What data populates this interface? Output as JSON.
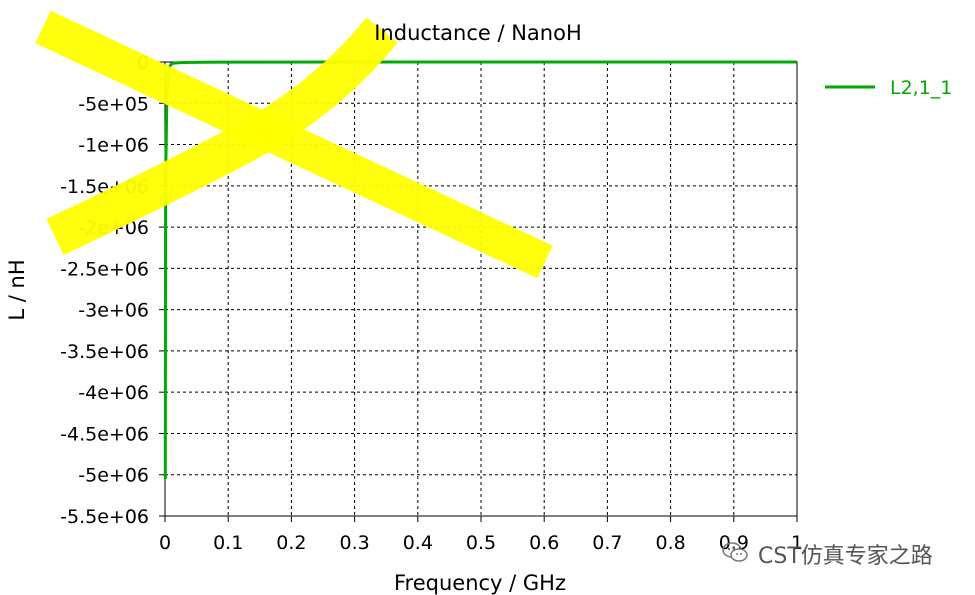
{
  "chart_data": {
    "type": "line",
    "title": "Inductance / NanoH",
    "xlabel": "Frequency / GHz",
    "ylabel": "L / nH",
    "xlim": [
      0,
      1
    ],
    "ylim": [
      -5500000,
      0
    ],
    "x_ticks": [
      0,
      0.1,
      0.2,
      0.3,
      0.4,
      0.5,
      0.6,
      0.7,
      0.8,
      0.9,
      1
    ],
    "x_tick_labels": [
      "0",
      "0.1",
      "0.2",
      "0.3",
      "0.4",
      "0.5",
      "0.6",
      "0.7",
      "0.8",
      "0.9",
      "1"
    ],
    "y_ticks": [
      0,
      -500000,
      -1000000,
      -1500000,
      -2000000,
      -2500000,
      -3000000,
      -3500000,
      -4000000,
      -4500000,
      -5000000,
      -5500000
    ],
    "y_tick_labels": [
      "0",
      "-5e+05",
      "-1e+06",
      "-1.5e+06",
      "-2e+06",
      "-2.5e+06",
      "-3e+06",
      "-3.5e+06",
      "-4e+06",
      "-4.5e+06",
      "-5e+06",
      "-5.5e+06"
    ],
    "grid": true,
    "legend_position": "right",
    "series": [
      {
        "name": "L2,1_1",
        "color": "#00aa00",
        "x": [
          0.0005,
          0.001,
          0.002,
          0.003,
          0.005,
          0.007,
          0.01,
          0.015,
          0.03,
          0.06,
          0.1,
          0.3,
          0.5,
          0.7,
          1.0
        ],
        "y": [
          -5050000,
          -1400000,
          -900000,
          -400000,
          -150000,
          -60000,
          -25000,
          -12000,
          -6000,
          -3000,
          -1500,
          -500,
          -300,
          -200,
          -100
        ]
      }
    ]
  },
  "watermark": {
    "text": "CST仿真专家之路",
    "icon": "wechat-icon"
  },
  "highlight_color": "#ffff00"
}
